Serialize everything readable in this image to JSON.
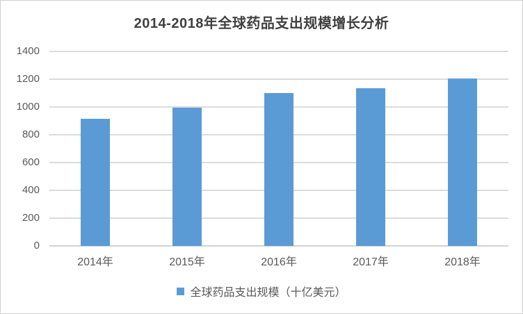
{
  "chart_data": {
    "type": "bar",
    "title": "2014-2018年全球药品支出规模增长分析",
    "categories": [
      "2014年",
      "2015年",
      "2016年",
      "2017年",
      "2018年"
    ],
    "values": [
      915,
      995,
      1100,
      1135,
      1205
    ],
    "series_name": "全球药品支出规模（十亿美元）",
    "xlabel": "",
    "ylabel": "",
    "ylim": [
      0,
      1400
    ],
    "yticks": [
      0,
      200,
      400,
      600,
      800,
      1000,
      1200,
      1400
    ],
    "grid": true,
    "legend_position": "bottom",
    "colors": {
      "bar": "#5B9BD5",
      "gridline": "#DBDBDB",
      "axis_line": "#D2D2D2",
      "title_text": "#404040",
      "tick_text": "#595959",
      "legend_text": "#595959",
      "border": "#CFCFCF",
      "background": "#FFFFFF"
    }
  }
}
